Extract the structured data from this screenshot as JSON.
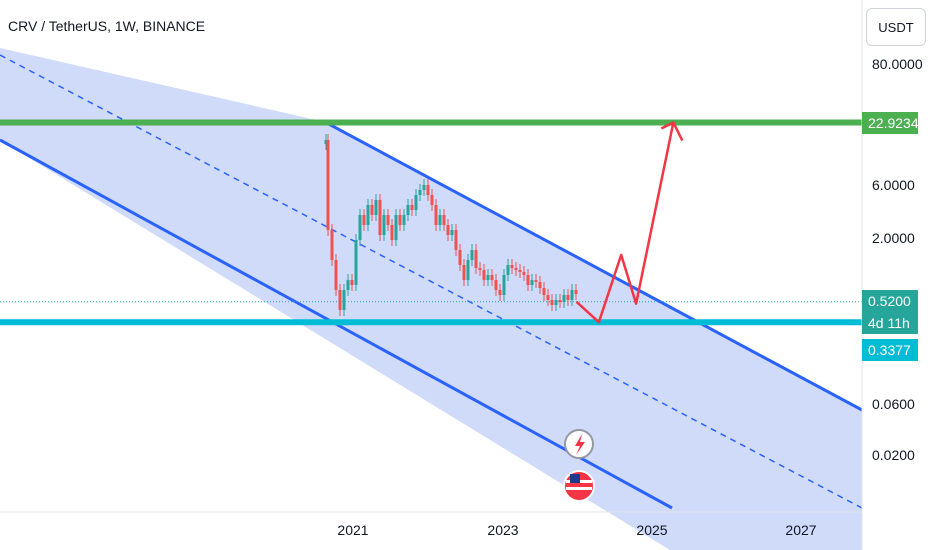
{
  "header": {
    "title": "CRV / TetherUS, 1W, BINANCE"
  },
  "currency_button": {
    "label": "USDT"
  },
  "colors": {
    "channel_fill": "#c8d4f8",
    "channel_line": "#2962ff",
    "resistance": "#4caf50",
    "support": "#00bcd4",
    "projection": "#f23645",
    "candle_up": "#26a69a",
    "candle_down": "#ef5350",
    "price_badge": "#26a69a"
  },
  "chart_data": {
    "type": "candlestick",
    "title": "CRV / TetherUS, 1W, BINANCE",
    "y_scale": "log",
    "y_ticks": [
      "80.0000",
      "6.0000",
      "2.0000",
      "0.0600",
      "0.0200"
    ],
    "x_ticks": [
      "2021",
      "2023",
      "2025",
      "2027"
    ],
    "levels": [
      {
        "name": "resistance",
        "value": 22.9234,
        "label": "22.9234"
      },
      {
        "name": "support",
        "value": 0.3377,
        "label": "0.3377"
      }
    ],
    "current_price": {
      "value": 0.52,
      "label": "0.5200",
      "countdown": "4d 11h"
    },
    "projection_path": [
      {
        "x": "2024.0",
        "y": 0.52
      },
      {
        "x": "2024.3",
        "y": 0.3377
      },
      {
        "x": "2024.6",
        "y": 1.4
      },
      {
        "x": "2024.8",
        "y": 0.5
      },
      {
        "x": "2025.3",
        "y": 22.9234
      }
    ]
  }
}
